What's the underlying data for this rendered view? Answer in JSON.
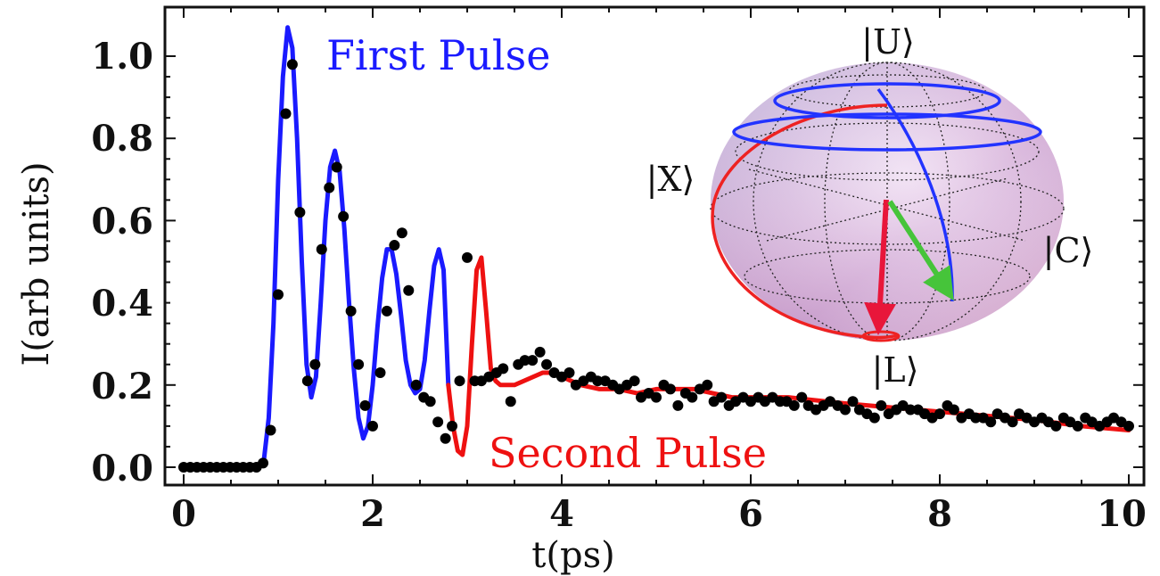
{
  "chart_data": {
    "type": "line",
    "xlabel": "t(ps)",
    "ylabel": "I(arb units)",
    "xlim": [
      -0.4,
      10.3
    ],
    "ylim": [
      -0.05,
      1.12
    ],
    "xticks": [
      "0",
      "2",
      "4",
      "6",
      "8",
      "10"
    ],
    "yticks": [
      "0.0",
      "0.2",
      "0.4",
      "0.6",
      "0.8",
      "1.0"
    ],
    "grid": false,
    "annotations": [
      {
        "text": "First Pulse",
        "color": "#1a1aff",
        "x": 3.4,
        "y": 1.02
      },
      {
        "text": "Second Pulse",
        "color": "#ee1111",
        "x": 7.1,
        "y": 0.035
      }
    ],
    "series": [
      {
        "kind": "line",
        "color": "#1a1aff",
        "x": [
          0.8,
          0.85,
          0.9,
          0.95,
          1.0,
          1.05,
          1.1,
          1.15,
          1.2,
          1.25,
          1.3,
          1.35,
          1.4,
          1.45,
          1.5,
          1.55,
          1.6,
          1.65,
          1.7,
          1.75,
          1.8,
          1.85,
          1.9,
          1.95,
          2.0,
          2.05,
          2.1,
          2.15,
          2.2,
          2.25,
          2.3,
          2.35,
          2.4,
          2.45,
          2.5,
          2.55,
          2.6,
          2.65,
          2.7,
          2.75,
          2.8
        ],
        "y": [
          0.0,
          0.02,
          0.12,
          0.35,
          0.7,
          0.95,
          1.07,
          1.02,
          0.8,
          0.5,
          0.25,
          0.17,
          0.22,
          0.4,
          0.6,
          0.73,
          0.77,
          0.72,
          0.58,
          0.4,
          0.24,
          0.12,
          0.07,
          0.1,
          0.2,
          0.34,
          0.46,
          0.53,
          0.53,
          0.47,
          0.37,
          0.26,
          0.2,
          0.18,
          0.19,
          0.26,
          0.38,
          0.49,
          0.53,
          0.48,
          0.2
        ]
      },
      {
        "kind": "line",
        "color": "#ee1111",
        "x": [
          2.8,
          2.85,
          2.9,
          2.95,
          3.0,
          3.05,
          3.1,
          3.15,
          3.2,
          3.25,
          3.3,
          3.35,
          3.4,
          3.5,
          3.6,
          3.7,
          3.8,
          3.9,
          4.0,
          4.1,
          4.2,
          4.4,
          4.6,
          4.8,
          5.0,
          5.2,
          5.4,
          5.6,
          5.8,
          6.0,
          6.2,
          6.4,
          6.6,
          6.8,
          7.0,
          7.5,
          8.0,
          8.5,
          9.0,
          9.5,
          10.0
        ],
        "y": [
          0.2,
          0.1,
          0.04,
          0.03,
          0.1,
          0.3,
          0.48,
          0.51,
          0.38,
          0.24,
          0.21,
          0.2,
          0.2,
          0.2,
          0.21,
          0.22,
          0.23,
          0.23,
          0.22,
          0.21,
          0.2,
          0.19,
          0.19,
          0.18,
          0.19,
          0.19,
          0.19,
          0.18,
          0.17,
          0.17,
          0.17,
          0.17,
          0.165,
          0.16,
          0.155,
          0.145,
          0.135,
          0.125,
          0.115,
          0.1,
          0.09
        ]
      },
      {
        "kind": "scatter",
        "color": "#000000",
        "x": [
          0.0,
          0.07,
          0.14,
          0.21,
          0.28,
          0.35,
          0.42,
          0.49,
          0.56,
          0.63,
          0.7,
          0.77,
          0.84,
          0.92,
          1.0,
          1.08,
          1.15,
          1.23,
          1.31,
          1.39,
          1.46,
          1.54,
          1.62,
          1.69,
          1.77,
          1.85,
          1.92,
          2.0,
          2.08,
          2.15,
          2.23,
          2.31,
          2.38,
          2.46,
          2.54,
          2.61,
          2.69,
          2.77,
          2.84,
          2.92,
          3.0,
          3.08,
          3.15,
          3.23,
          3.31,
          3.38,
          3.46,
          3.54,
          3.61,
          3.69,
          3.77,
          3.84,
          3.92,
          4.0,
          4.08,
          4.15,
          4.23,
          4.31,
          4.38,
          4.46,
          4.54,
          4.61,
          4.69,
          4.77,
          4.84,
          4.92,
          5.0,
          5.08,
          5.15,
          5.23,
          5.31,
          5.38,
          5.46,
          5.54,
          5.61,
          5.69,
          5.77,
          5.84,
          5.92,
          6.0,
          6.08,
          6.15,
          6.23,
          6.31,
          6.38,
          6.46,
          6.54,
          6.61,
          6.69,
          6.77,
          6.84,
          6.92,
          7.0,
          7.08,
          7.15,
          7.23,
          7.31,
          7.38,
          7.46,
          7.54,
          7.61,
          7.69,
          7.77,
          7.84,
          7.92,
          8.0,
          8.08,
          8.15,
          8.23,
          8.31,
          8.38,
          8.46,
          8.54,
          8.61,
          8.69,
          8.77,
          8.84,
          8.92,
          9.0,
          9.08,
          9.15,
          9.23,
          9.31,
          9.38,
          9.46,
          9.54,
          9.61,
          9.69,
          9.77,
          9.84,
          9.92,
          10.0
        ],
        "y": [
          0.0,
          0.0,
          0.0,
          0.0,
          0.0,
          0.0,
          0.0,
          0.0,
          0.0,
          0.0,
          0.0,
          0.0,
          0.01,
          0.09,
          0.42,
          0.86,
          0.98,
          0.62,
          0.21,
          0.25,
          0.53,
          0.68,
          0.73,
          0.61,
          0.38,
          0.25,
          0.15,
          0.1,
          0.23,
          0.38,
          0.54,
          0.57,
          0.43,
          0.2,
          0.17,
          0.16,
          0.11,
          0.07,
          0.1,
          0.21,
          0.51,
          0.21,
          0.21,
          0.22,
          0.23,
          0.24,
          0.16,
          0.25,
          0.26,
          0.26,
          0.28,
          0.25,
          0.23,
          0.22,
          0.23,
          0.2,
          0.21,
          0.22,
          0.21,
          0.21,
          0.2,
          0.19,
          0.2,
          0.21,
          0.17,
          0.18,
          0.17,
          0.2,
          0.19,
          0.15,
          0.18,
          0.17,
          0.19,
          0.2,
          0.16,
          0.17,
          0.15,
          0.16,
          0.17,
          0.16,
          0.17,
          0.16,
          0.17,
          0.16,
          0.16,
          0.15,
          0.17,
          0.15,
          0.14,
          0.15,
          0.16,
          0.15,
          0.14,
          0.16,
          0.14,
          0.13,
          0.12,
          0.15,
          0.13,
          0.14,
          0.15,
          0.14,
          0.14,
          0.13,
          0.12,
          0.13,
          0.15,
          0.14,
          0.12,
          0.13,
          0.12,
          0.12,
          0.11,
          0.13,
          0.12,
          0.11,
          0.13,
          0.12,
          0.11,
          0.12,
          0.11,
          0.1,
          0.12,
          0.11,
          0.1,
          0.12,
          0.11,
          0.1,
          0.11,
          0.12,
          0.11,
          0.1
        ]
      }
    ],
    "inset": {
      "type": "bloch-sphere",
      "labels": [
        "|U⟩",
        "|X⟩",
        "|C⟩",
        "|L⟩"
      ],
      "colors": {
        "first": "#2233ff",
        "second": "#ee2222",
        "vector_a": "#e8163a",
        "vector_b": "#46c43a"
      }
    }
  }
}
